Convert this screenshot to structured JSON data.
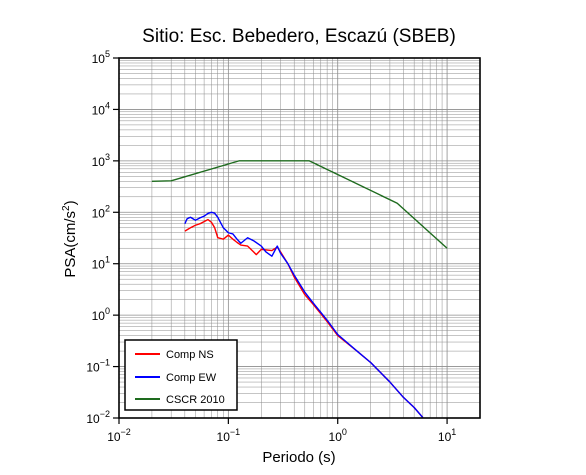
{
  "chart_data": {
    "type": "line",
    "title": "Sitio: Esc. Bebedero, Escazú (SBEB)",
    "xlabel": "Periodo (s)",
    "ylabel_main": "PSA(cm/s",
    "ylabel_sup": "2",
    "ylabel_end": ")",
    "xscale": "log",
    "yscale": "log",
    "xlim": [
      0.01,
      20
    ],
    "ylim": [
      0.01,
      100000
    ],
    "grid": true,
    "legend_position": "bottom-left",
    "x_ticks": [
      {
        "base": "10",
        "exp": "−2",
        "value": 0.01
      },
      {
        "base": "10",
        "exp": "−1",
        "value": 0.1
      },
      {
        "base": "10",
        "exp": "0",
        "value": 1
      },
      {
        "base": "10",
        "exp": "1",
        "value": 10
      }
    ],
    "y_ticks": [
      {
        "base": "10",
        "exp": "−2",
        "value": 0.01
      },
      {
        "base": "10",
        "exp": "−1",
        "value": 0.1
      },
      {
        "base": "10",
        "exp": "0",
        "value": 1
      },
      {
        "base": "10",
        "exp": "1",
        "value": 10
      },
      {
        "base": "10",
        "exp": "2",
        "value": 100
      },
      {
        "base": "10",
        "exp": "3",
        "value": 1000
      },
      {
        "base": "10",
        "exp": "4",
        "value": 10000
      },
      {
        "base": "10",
        "exp": "5",
        "value": 100000
      }
    ],
    "series": [
      {
        "name": "Comp NS",
        "color": "#ff0000",
        "points": [
          [
            0.04,
            43
          ],
          [
            0.045,
            50
          ],
          [
            0.05,
            56
          ],
          [
            0.055,
            60
          ],
          [
            0.06,
            66
          ],
          [
            0.065,
            72
          ],
          [
            0.07,
            64
          ],
          [
            0.075,
            50
          ],
          [
            0.08,
            32
          ],
          [
            0.09,
            30
          ],
          [
            0.1,
            36
          ],
          [
            0.11,
            30
          ],
          [
            0.12,
            26
          ],
          [
            0.13,
            23
          ],
          [
            0.15,
            22
          ],
          [
            0.17,
            17
          ],
          [
            0.18,
            15
          ],
          [
            0.2,
            19
          ],
          [
            0.25,
            18
          ],
          [
            0.28,
            21
          ],
          [
            0.3,
            17
          ],
          [
            0.35,
            10
          ],
          [
            0.4,
            5.5
          ],
          [
            0.5,
            2.5
          ],
          [
            0.6,
            1.6
          ],
          [
            0.8,
            0.75
          ],
          [
            1.0,
            0.4
          ],
          [
            1.5,
            0.2
          ],
          [
            2,
            0.12
          ],
          [
            3,
            0.05
          ],
          [
            4,
            0.025
          ],
          [
            5,
            0.016
          ],
          [
            6,
            0.0102
          ]
        ]
      },
      {
        "name": "Comp EW",
        "color": "#0000ff",
        "points": [
          [
            0.04,
            60
          ],
          [
            0.042,
            75
          ],
          [
            0.045,
            80
          ],
          [
            0.05,
            70
          ],
          [
            0.055,
            78
          ],
          [
            0.06,
            84
          ],
          [
            0.065,
            95
          ],
          [
            0.07,
            100
          ],
          [
            0.075,
            96
          ],
          [
            0.08,
            80
          ],
          [
            0.09,
            50
          ],
          [
            0.1,
            40
          ],
          [
            0.11,
            38
          ],
          [
            0.12,
            30
          ],
          [
            0.13,
            25
          ],
          [
            0.15,
            32
          ],
          [
            0.17,
            28
          ],
          [
            0.2,
            22
          ],
          [
            0.22,
            17
          ],
          [
            0.25,
            14
          ],
          [
            0.28,
            22
          ],
          [
            0.3,
            16
          ],
          [
            0.35,
            10
          ],
          [
            0.4,
            6
          ],
          [
            0.5,
            2.8
          ],
          [
            0.6,
            1.7
          ],
          [
            0.8,
            0.8
          ],
          [
            1.0,
            0.42
          ],
          [
            1.5,
            0.2
          ],
          [
            2,
            0.12
          ],
          [
            3,
            0.05
          ],
          [
            4,
            0.025
          ],
          [
            5,
            0.016
          ],
          [
            6,
            0.0102
          ]
        ]
      },
      {
        "name": "CSCR 2010",
        "color": "#1e6b1e",
        "points": [
          [
            0.02,
            400
          ],
          [
            0.03,
            410
          ],
          [
            0.125,
            1000
          ],
          [
            0.55,
            1000
          ],
          [
            3.5,
            150
          ],
          [
            10,
            20
          ]
        ]
      }
    ]
  }
}
